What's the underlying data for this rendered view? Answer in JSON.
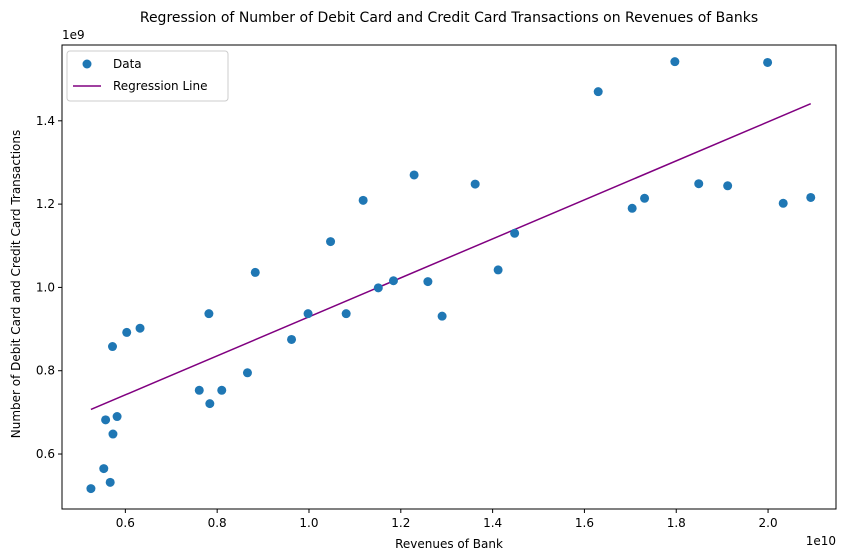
{
  "chart_data": {
    "type": "scatter",
    "title": "Regression of Number of Debit Card and Credit Card Transactions on Revenues of Banks",
    "xlabel": "Revenues of Bank",
    "ylabel": "Number of Debit Card and Credit Card Transactions",
    "x_offset_label": "1e10",
    "y_offset_label": "1e9",
    "xlim": [
      0.462,
      2.148
    ],
    "ylim": [
      0.468,
      1.582
    ],
    "x_ticks": [
      0.6,
      0.8,
      1.0,
      1.2,
      1.4,
      1.6,
      1.8,
      2.0
    ],
    "x_tick_labels": [
      "0.6",
      "0.8",
      "1.0",
      "1.2",
      "1.4",
      "1.6",
      "1.8",
      "2.0"
    ],
    "y_ticks": [
      0.6,
      0.8,
      1.0,
      1.2,
      1.4
    ],
    "y_tick_labels": [
      "0.6",
      "0.8",
      "1.0",
      "1.2",
      "1.4"
    ],
    "grid": false,
    "legend_position": "upper-left",
    "series": [
      {
        "name": "Data",
        "kind": "scatter",
        "color": "#1f77b4",
        "points": [
          [
            0.525,
            0.517
          ],
          [
            0.553,
            0.565
          ],
          [
            0.557,
            0.682
          ],
          [
            0.567,
            0.532
          ],
          [
            0.572,
            0.858
          ],
          [
            0.573,
            0.648
          ],
          [
            0.582,
            0.69
          ],
          [
            0.603,
            0.892
          ],
          [
            0.632,
            0.902
          ],
          [
            0.761,
            0.753
          ],
          [
            0.782,
            0.937
          ],
          [
            0.784,
            0.721
          ],
          [
            0.81,
            0.753
          ],
          [
            0.866,
            0.795
          ],
          [
            0.883,
            1.036
          ],
          [
            0.962,
            0.875
          ],
          [
            0.998,
            0.937
          ],
          [
            1.047,
            1.11
          ],
          [
            1.081,
            0.937
          ],
          [
            1.118,
            1.209
          ],
          [
            1.151,
            0.999
          ],
          [
            1.184,
            1.016
          ],
          [
            1.229,
            1.27
          ],
          [
            1.259,
            1.014
          ],
          [
            1.29,
            0.931
          ],
          [
            1.362,
            1.248
          ],
          [
            1.412,
            1.042
          ],
          [
            1.448,
            1.13
          ],
          [
            1.63,
            1.47
          ],
          [
            1.704,
            1.19
          ],
          [
            1.731,
            1.214
          ],
          [
            1.797,
            1.542
          ],
          [
            1.849,
            1.249
          ],
          [
            1.912,
            1.244
          ],
          [
            1.999,
            1.54
          ],
          [
            2.033,
            1.202
          ],
          [
            2.093,
            1.216
          ]
        ]
      },
      {
        "name": "Regression Line",
        "kind": "line",
        "color": "#800080",
        "points": [
          [
            0.525,
            0.707
          ],
          [
            2.093,
            1.441
          ]
        ]
      }
    ]
  }
}
